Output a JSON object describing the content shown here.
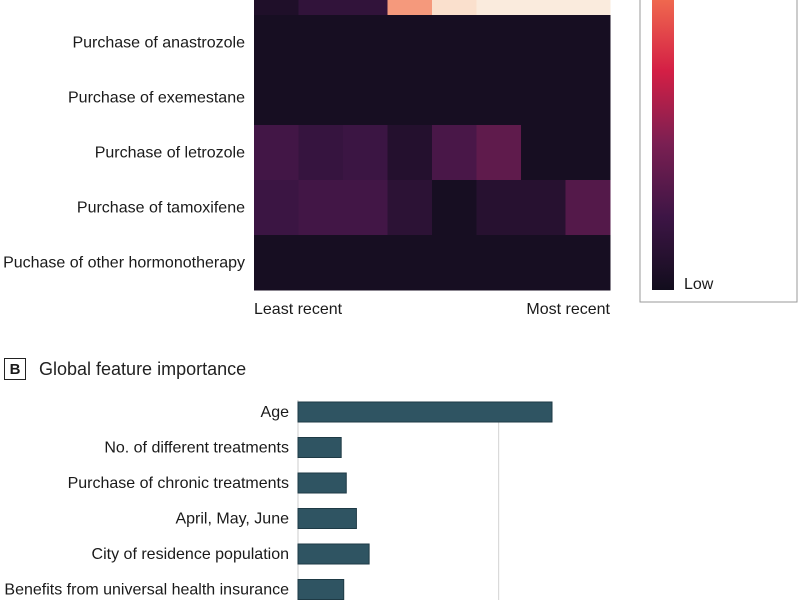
{
  "chart_data": [
    {
      "type": "heatmap",
      "rows": [
        "Purchase of anastrozole",
        "Purchase of exemestane",
        "Purchase of letrozole",
        "Purchase of tamoxifene",
        "Puchase of other hormonotherapy"
      ],
      "x_start_label": "Least recent",
      "x_end_label": "Most recent",
      "columns": 8,
      "partial_top_row_values": [
        0.05,
        0.12,
        0.12,
        0.75,
        0.95,
        1.0,
        1.0,
        1.0
      ],
      "values": [
        [
          0.02,
          0.02,
          0.02,
          0.02,
          0.02,
          0.02,
          0.02,
          0.02
        ],
        [
          0.02,
          0.02,
          0.02,
          0.02,
          0.02,
          0.02,
          0.02,
          0.02
        ],
        [
          0.18,
          0.14,
          0.16,
          0.07,
          0.2,
          0.26,
          0.02,
          0.02
        ],
        [
          0.16,
          0.18,
          0.18,
          0.1,
          0.02,
          0.08,
          0.08,
          0.23
        ],
        [
          0.02,
          0.02,
          0.02,
          0.02,
          0.02,
          0.02,
          0.02,
          0.02
        ]
      ],
      "colorbar_low_label": "Low",
      "colorscale": [
        "#120d1d",
        "#3d1545",
        "#7a1f52",
        "#d41f45",
        "#f06a4f",
        "#f9c8a8",
        "#faebdd"
      ]
    },
    {
      "type": "bar",
      "orientation": "horizontal",
      "panel_label": "B",
      "title": "Global feature importance",
      "categories": [
        "Age",
        "No. of different treatments",
        "Purchase of chronic treatments",
        "April, May, June",
        "City of residence population",
        "Benefits from universal health insurance"
      ],
      "values": [
        1.0,
        0.17,
        0.19,
        0.23,
        0.28,
        0.18
      ],
      "reference_line": 0.79,
      "xlim": [
        0,
        1.2
      ],
      "bar_color": "#2f5462"
    }
  ]
}
